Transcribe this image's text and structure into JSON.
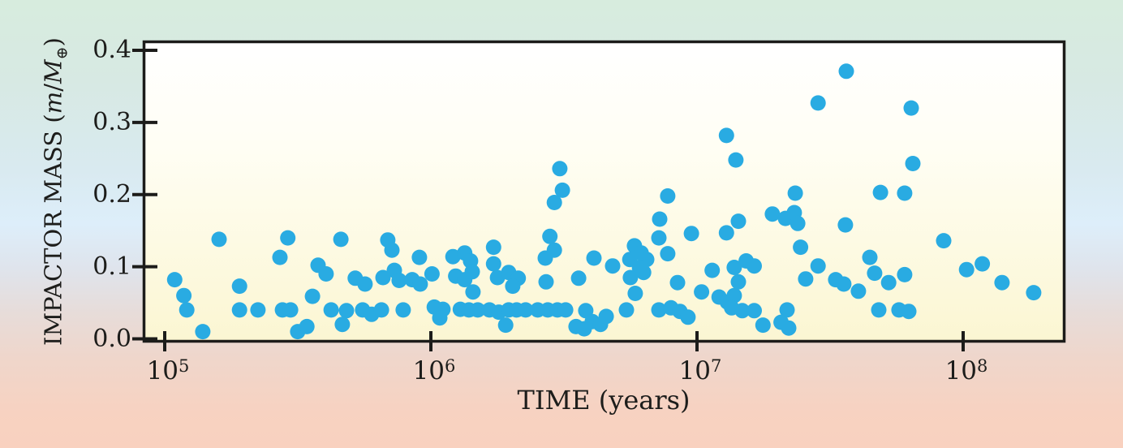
{
  "labels": {
    "x_title": "TIME (years)",
    "y_title_prefix": "IMPACTOR MASS (",
    "y_var": "m",
    "y_slash": "/",
    "y_mass_symbol": "M",
    "y_earth_symbol": "⊕",
    "y_title_suffix": ")"
  },
  "axes": {
    "x_ticks": [
      {
        "base": "10",
        "exp": "5"
      },
      {
        "base": "10",
        "exp": "6"
      },
      {
        "base": "10",
        "exp": "7"
      },
      {
        "base": "10",
        "exp": "8"
      }
    ],
    "y_ticks": [
      "0.4",
      "0.3",
      "0.2",
      "0.1",
      "0.0"
    ]
  },
  "colors": {
    "dot": "#29abe2",
    "axis": "#1c1c1a",
    "plot_bg_top": "#ffffff",
    "plot_bg_mid": "#fdfae3",
    "plot_bg_bottom": "#fbf6d2",
    "bg_top": "#d7ecde",
    "bg_mid_blue": "#ddeefa",
    "bg_bottom": "#f9d1bf"
  },
  "chart_data": {
    "type": "scatter",
    "title": "",
    "xlabel": "TIME (years)",
    "ylabel": "IMPACTOR MASS (m/M⊕)",
    "x_scale": "log",
    "xlim": [
      83000.0,
      243000000.0
    ],
    "ylim": [
      0,
      0.414
    ],
    "x_tick_values": [
      100000.0,
      1000000.0,
      10000000.0,
      100000000.0
    ],
    "y_tick_values": [
      0,
      0.1,
      0.2,
      0.3,
      0.4
    ],
    "grid": false,
    "legend": "none",
    "marker": {
      "shape": "circle",
      "radius_px": 9.5,
      "color": "#29abe2"
    },
    "n_points": 150,
    "points": [
      [
        109000.0,
        0.082
      ],
      [
        118000.0,
        0.06
      ],
      [
        121000.0,
        0.04
      ],
      [
        139000.0,
        0.01
      ],
      [
        160000.0,
        0.138
      ],
      [
        191000.0,
        0.073
      ],
      [
        191000.0,
        0.04
      ],
      [
        224000.0,
        0.04
      ],
      [
        271000.0,
        0.113
      ],
      [
        290000.0,
        0.14
      ],
      [
        277000.0,
        0.04
      ],
      [
        297000.0,
        0.04
      ],
      [
        316000.0,
        0.01
      ],
      [
        342000.0,
        0.017
      ],
      [
        359000.0,
        0.059
      ],
      [
        377000.0,
        0.102
      ],
      [
        404000.0,
        0.09
      ],
      [
        459000.0,
        0.138
      ],
      [
        422000.0,
        0.04
      ],
      [
        482000.0,
        0.039
      ],
      [
        465000.0,
        0.02
      ],
      [
        520000.0,
        0.084
      ],
      [
        566000.0,
        0.076
      ],
      [
        554000.0,
        0.04
      ],
      [
        599000.0,
        0.034
      ],
      [
        652000.0,
        0.04
      ],
      [
        661000.0,
        0.085
      ],
      [
        689000.0,
        0.137
      ],
      [
        714000.0,
        0.123
      ],
      [
        729000.0,
        0.095
      ],
      [
        760000.0,
        0.081
      ],
      [
        787000.0,
        0.04
      ],
      [
        851000.0,
        0.082
      ],
      [
        912000.0,
        0.076
      ],
      [
        906000.0,
        0.113
      ],
      [
        1010000.0,
        0.09
      ],
      [
        1030000.0,
        0.044
      ],
      [
        1110000.0,
        0.041
      ],
      [
        1080000.0,
        0.029
      ],
      [
        1240000.0,
        0.087
      ],
      [
        1340000.0,
        0.082
      ],
      [
        1290000.0,
        0.041
      ],
      [
        1390000.0,
        0.04
      ],
      [
        1500000.0,
        0.04
      ],
      [
        1210000.0,
        0.114
      ],
      [
        1340000.0,
        0.119
      ],
      [
        1410000.0,
        0.108
      ],
      [
        1430000.0,
        0.093
      ],
      [
        1440000.0,
        0.065
      ],
      [
        1660000.0,
        0.04
      ],
      [
        1800000.0,
        0.037
      ],
      [
        1960000.0,
        0.04
      ],
      [
        2100000.0,
        0.04
      ],
      [
        2270000.0,
        0.04
      ],
      [
        1720000.0,
        0.127
      ],
      [
        1720000.0,
        0.104
      ],
      [
        1780000.0,
        0.085
      ],
      [
        1910000.0,
        0.019
      ],
      [
        1960000.0,
        0.092
      ],
      [
        2130000.0,
        0.084
      ],
      [
        2030000.0,
        0.073
      ],
      [
        2520000.0,
        0.04
      ],
      [
        2750000.0,
        0.04
      ],
      [
        2990000.0,
        0.04
      ],
      [
        3210000.0,
        0.04
      ],
      [
        2690000.0,
        0.112
      ],
      [
        2710000.0,
        0.079
      ],
      [
        2800000.0,
        0.142
      ],
      [
        2910000.0,
        0.189
      ],
      [
        3050000.0,
        0.236
      ],
      [
        3120000.0,
        0.206
      ],
      [
        2910000.0,
        0.123
      ],
      [
        3590000.0,
        0.084
      ],
      [
        3510000.0,
        0.017
      ],
      [
        3770000.0,
        0.014
      ],
      [
        3820000.0,
        0.039
      ],
      [
        4100000.0,
        0.112
      ],
      [
        4040000.0,
        0.024
      ],
      [
        4340000.0,
        0.02
      ],
      [
        4560000.0,
        0.031
      ],
      [
        4820000.0,
        0.101
      ],
      [
        5430000.0,
        0.04
      ],
      [
        5820000.0,
        0.129
      ],
      [
        6170000.0,
        0.119
      ],
      [
        5590000.0,
        0.11
      ],
      [
        6470000.0,
        0.11
      ],
      [
        6080000.0,
        0.099
      ],
      [
        6300000.0,
        0.092
      ],
      [
        5620000.0,
        0.085
      ],
      [
        5860000.0,
        0.063
      ],
      [
        7190000.0,
        0.04
      ],
      [
        7190000.0,
        0.14
      ],
      [
        7240000.0,
        0.166
      ],
      [
        7760000.0,
        0.198
      ],
      [
        7760000.0,
        0.118
      ],
      [
        7980000.0,
        0.043
      ],
      [
        8450000.0,
        0.078
      ],
      [
        8630000.0,
        0.038
      ],
      [
        9250000.0,
        0.03
      ],
      [
        9530000.0,
        0.146
      ],
      [
        10400000.0,
        0.065
      ],
      [
        11400000.0,
        0.095
      ],
      [
        12100000.0,
        0.058
      ],
      [
        13000000.0,
        0.051
      ],
      [
        13800000.0,
        0.06
      ],
      [
        12900000.0,
        0.282
      ],
      [
        14000000.0,
        0.248
      ],
      [
        12900000.0,
        0.147
      ],
      [
        14300000.0,
        0.163
      ],
      [
        13800000.0,
        0.099
      ],
      [
        15300000.0,
        0.108
      ],
      [
        16400000.0,
        0.101
      ],
      [
        14300000.0,
        0.079
      ],
      [
        13500000.0,
        0.043
      ],
      [
        14800000.0,
        0.039
      ],
      [
        16400000.0,
        0.039
      ],
      [
        17700000.0,
        0.019
      ],
      [
        20700000.0,
        0.023
      ],
      [
        22100000.0,
        0.015
      ],
      [
        21800000.0,
        0.04
      ],
      [
        19200000.0,
        0.173
      ],
      [
        21500000.0,
        0.167
      ],
      [
        23200000.0,
        0.175
      ],
      [
        23900000.0,
        0.16
      ],
      [
        23400000.0,
        0.202
      ],
      [
        24500000.0,
        0.127
      ],
      [
        25600000.0,
        0.083
      ],
      [
        28500000.0,
        0.327
      ],
      [
        28500000.0,
        0.101
      ],
      [
        33200000.0,
        0.082
      ],
      [
        35600000.0,
        0.076
      ],
      [
        36400000.0,
        0.371
      ],
      [
        36100000.0,
        0.158
      ],
      [
        40400000.0,
        0.066
      ],
      [
        44600000.0,
        0.113
      ],
      [
        46500000.0,
        0.091
      ],
      [
        48200000.0,
        0.04
      ],
      [
        48900000.0,
        0.203
      ],
      [
        52500000.0,
        0.078
      ],
      [
        57400000.0,
        0.04
      ],
      [
        62500000.0,
        0.038
      ],
      [
        60300000.0,
        0.089
      ],
      [
        60300000.0,
        0.202
      ],
      [
        63800000.0,
        0.32
      ],
      [
        64700000.0,
        0.243
      ],
      [
        84500000.0,
        0.136
      ],
      [
        103000000.0,
        0.096
      ],
      [
        118000000.0,
        0.104
      ],
      [
        140000000.0,
        0.078
      ],
      [
        184000000.0,
        0.064
      ]
    ]
  }
}
